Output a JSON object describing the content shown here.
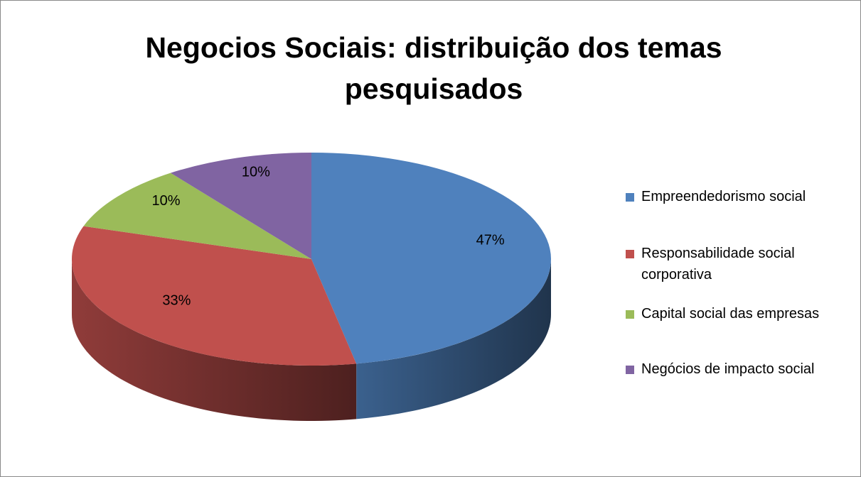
{
  "chart_data": {
    "type": "pie",
    "title": "Negocios Sociais: distribuição dos temas pesquisados",
    "categories": [
      "Empreendedorismo social",
      "Responsabilidade social corporativa",
      "Capital social das empresas",
      "Negócios de impacto social"
    ],
    "values": [
      47,
      33,
      10,
      10
    ],
    "value_labels": [
      "47%",
      "33%",
      "10%",
      "10%"
    ],
    "colors": [
      "#4F81BD",
      "#C0504D",
      "#9BBB59",
      "#8064A2"
    ],
    "legend": "right"
  }
}
